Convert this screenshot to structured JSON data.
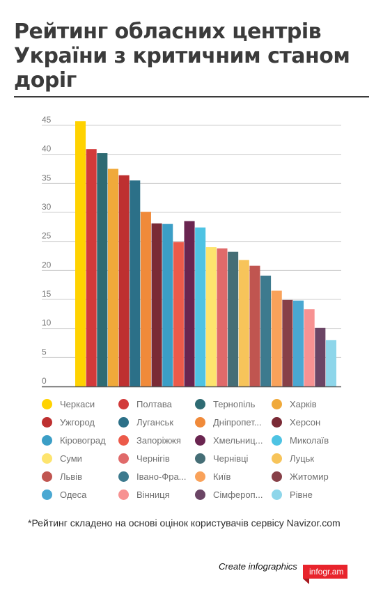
{
  "title": "Рейтинг обласних центрів України з критичним станом доріг",
  "footnote": "*Рейтинг складено на основі оцінок користувачів сервісу Navizor.com",
  "credit": {
    "text": "Create infographics",
    "brand": "infogr.am"
  },
  "colors": {
    "title": "#3b3b3b",
    "grid": "#cccccc",
    "axis": "#555555",
    "brand": "#e8242c"
  },
  "chart_data": {
    "type": "bar",
    "title": "Рейтинг обласних центрів України з критичним станом доріг",
    "xlabel": "",
    "ylabel": "",
    "ylim": [
      0,
      45
    ],
    "yticks": [
      0,
      5,
      10,
      15,
      20,
      25,
      30,
      35,
      40,
      45
    ],
    "grid": true,
    "legend_position": "bottom",
    "categories": [
      "Черкаси",
      "Полтава",
      "Тернопіль",
      "Харків",
      "Ужгород",
      "Луганськ",
      "Дніпропет...",
      "Херсон",
      "Кіровоград",
      "Запоріжжя",
      "Хмельниц...",
      "Миколаїв",
      "Суми",
      "Чернігів",
      "Чернівці",
      "Луцьк",
      "Львів",
      "Івано-Фра...",
      "Київ",
      "Житомир",
      "Одеса",
      "Вінниця",
      "Сімфероп...",
      "Рівне"
    ],
    "values": [
      45.7,
      40.9,
      40.2,
      37.5,
      36.4,
      35.5,
      30.1,
      28.1,
      28.0,
      24.9,
      28.5,
      27.4,
      24.0,
      23.8,
      23.2,
      21.8,
      20.8,
      19.1,
      16.5,
      14.9,
      14.8,
      13.3,
      10.1,
      8.0
    ],
    "colors": [
      "#ffd200",
      "#d23a3a",
      "#2e6b73",
      "#f0a93a",
      "#be3030",
      "#2c7088",
      "#f08a3a",
      "#7a2a35",
      "#3b9ec6",
      "#ec5a4a",
      "#6a2550",
      "#4ec3e3",
      "#fde46e",
      "#e06a6a",
      "#456e76",
      "#f7c45a",
      "#c05550",
      "#3d7a8e",
      "#f9a25a",
      "#874048",
      "#4aa8d2",
      "#f79292",
      "#6b4565",
      "#8ed6ea"
    ]
  }
}
